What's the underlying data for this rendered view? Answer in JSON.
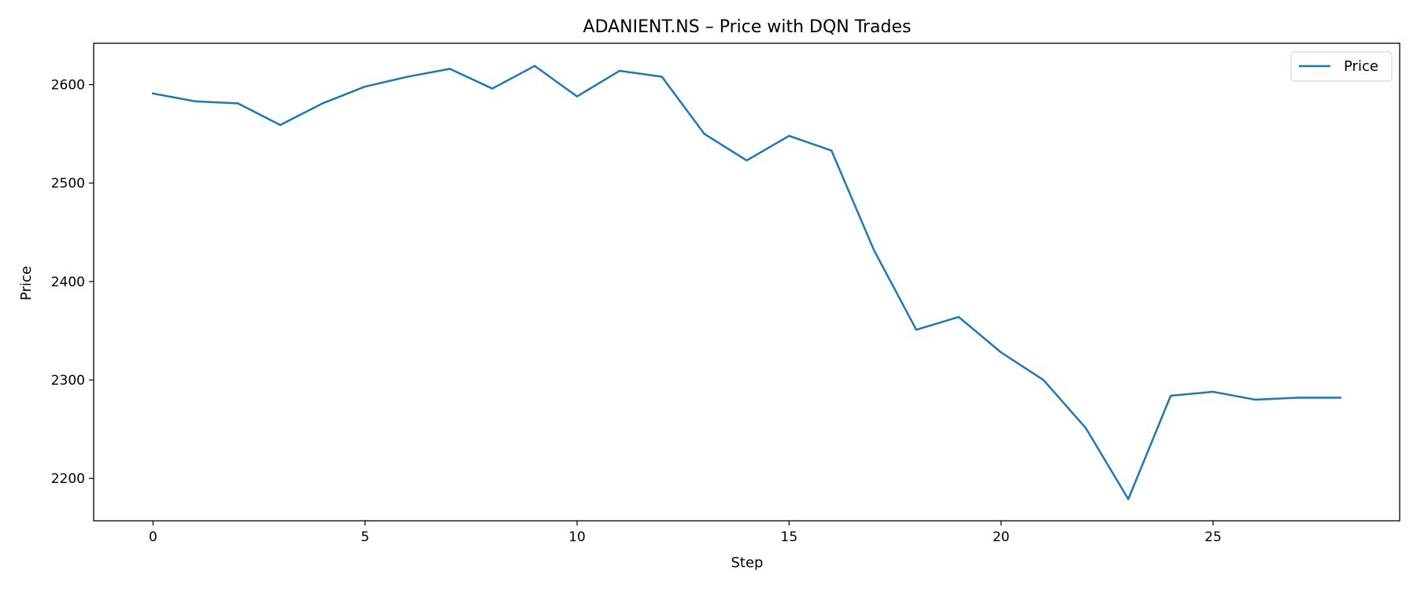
{
  "chart_data": {
    "type": "line",
    "title": "ADANIENT.NS – Price with DQN Trades",
    "xlabel": "Step",
    "ylabel": "Price",
    "xlim": [
      -1.4,
      29.4
    ],
    "ylim": [
      2157,
      2642
    ],
    "xticks": [
      0,
      5,
      10,
      15,
      20,
      25
    ],
    "yticks": [
      2200,
      2300,
      2400,
      2500,
      2600
    ],
    "grid": false,
    "legend_position": "top-right",
    "colors": {
      "series": "#1f77b4"
    },
    "series": [
      {
        "name": "Price",
        "x": [
          0,
          1,
          2,
          3,
          4,
          5,
          6,
          7,
          8,
          9,
          10,
          11,
          12,
          13,
          14,
          15,
          16,
          17,
          18,
          19,
          20,
          21,
          22,
          23,
          24,
          25,
          26,
          27,
          28
        ],
        "values": [
          2591,
          2583,
          2581,
          2559,
          2581,
          2598,
          2608,
          2616,
          2596,
          2619,
          2588,
          2614,
          2608,
          2550,
          2523,
          2548,
          2533,
          2432,
          2351,
          2364,
          2328,
          2300,
          2251,
          2179,
          2284,
          2288,
          2280,
          2282,
          2282
        ]
      }
    ]
  }
}
